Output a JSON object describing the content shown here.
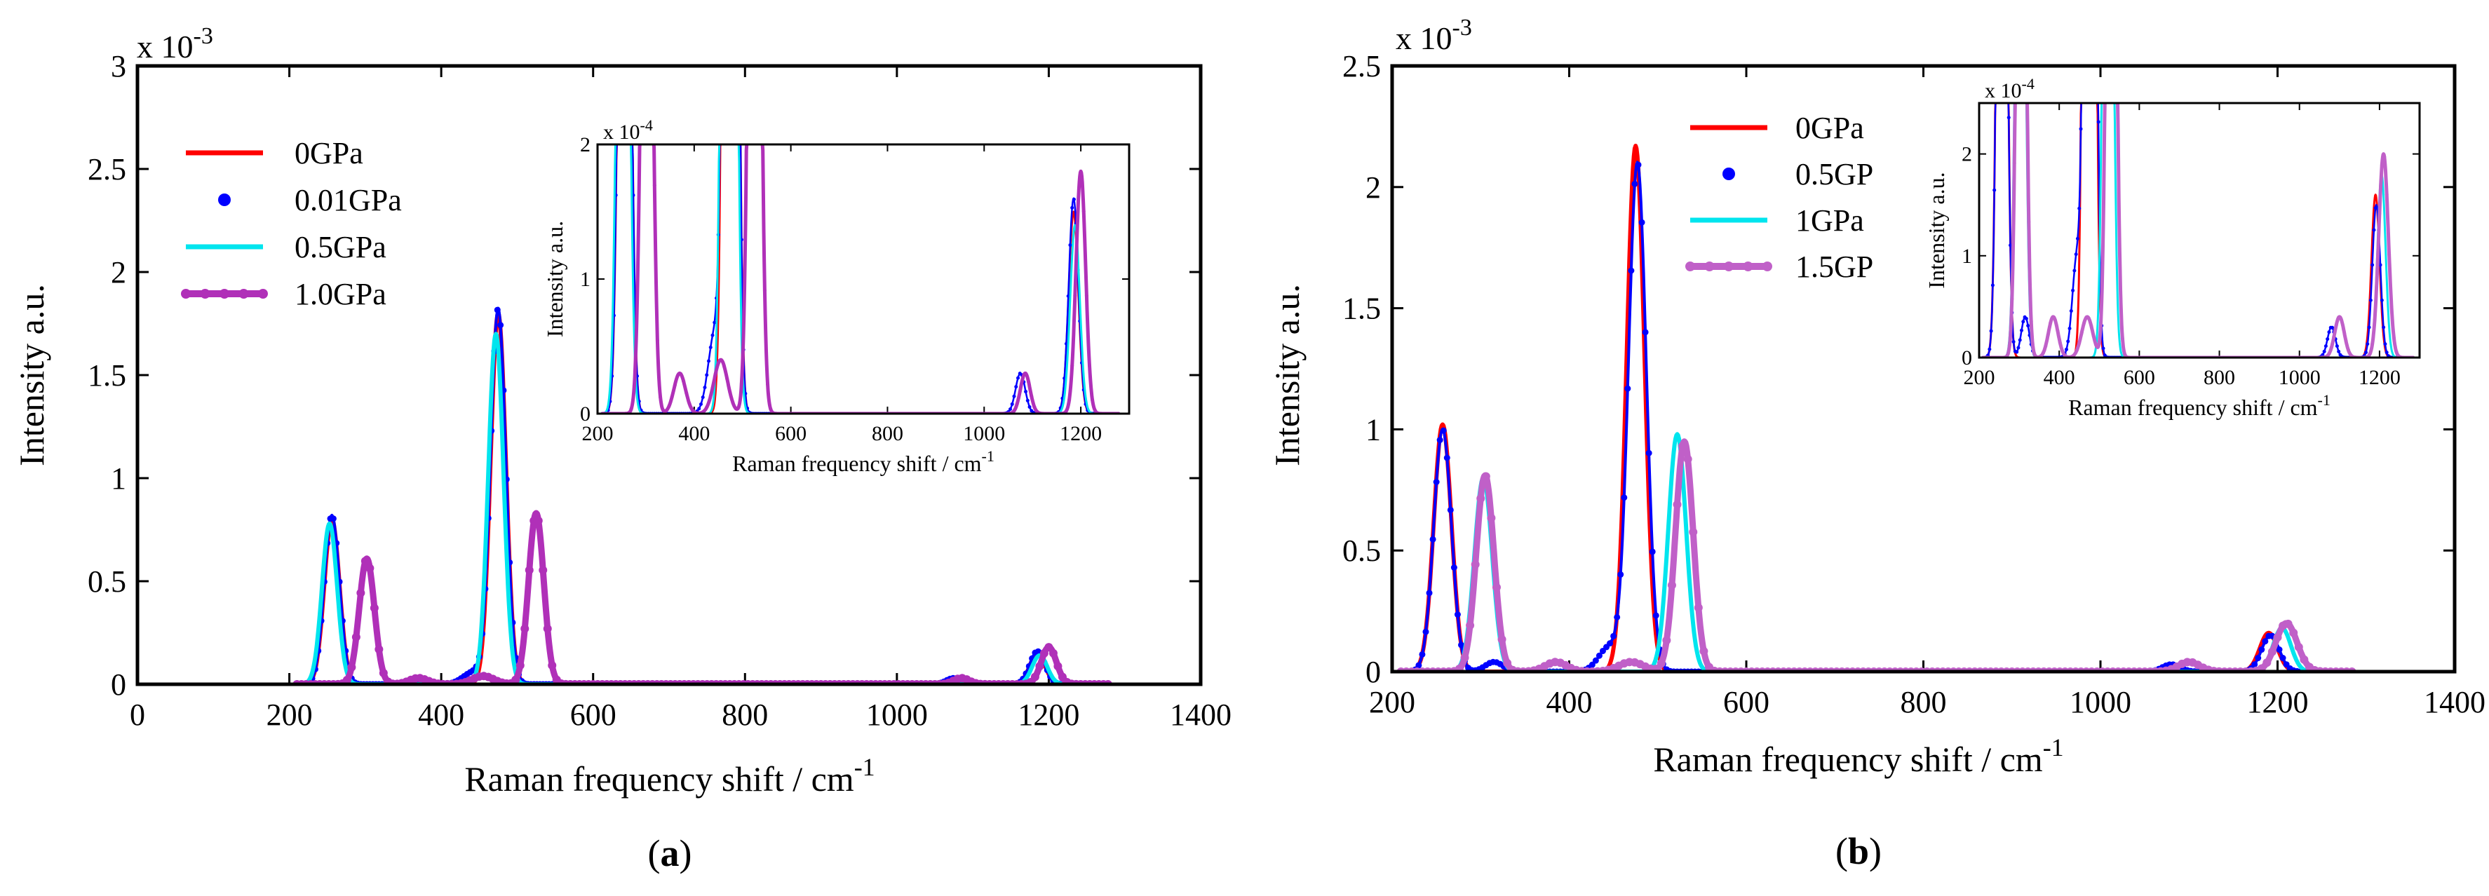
{
  "chart_data": [
    {
      "type": "line",
      "panel_label": "a",
      "xlabel": "Raman frequency shift / cm",
      "xlabel_sup": "-1",
      "ylabel": "Intensity a.u.",
      "y_scale_label": "x 10",
      "y_scale_exp": "-3",
      "xlim": [
        0,
        1400
      ],
      "ylim": [
        0,
        3
      ],
      "xticks": [
        0,
        200,
        400,
        600,
        800,
        1000,
        1200,
        1400
      ],
      "yticks": [
        0,
        0.5,
        1,
        1.5,
        2,
        2.5,
        3
      ],
      "ytick_labels": [
        "0",
        "0.5",
        "1",
        "1.5",
        "2",
        "2.5",
        "3"
      ],
      "legend": "top-left",
      "series": [
        {
          "name": "0GPa",
          "color": "#ff0000",
          "style": "line",
          "range": [
            210,
            1280
          ],
          "peaks": [
            [
              256,
              0.8,
              10
            ],
            [
              475,
              1.8,
              10
            ],
            [
              1185,
              0.15,
              10
            ]
          ]
        },
        {
          "name": "0.01GPa",
          "color": "#0000ff",
          "style": "dots",
          "range": [
            210,
            1280
          ],
          "peaks": [
            [
              256,
              0.82,
              10
            ],
            [
              475,
              1.82,
              10
            ],
            [
              443,
              0.06,
              14
            ],
            [
              1075,
              0.03,
              10
            ],
            [
              1185,
              0.16,
              10
            ]
          ]
        },
        {
          "name": "0.5GPa",
          "color": "#00e5ee",
          "style": "line",
          "range": [
            210,
            1280
          ],
          "peaks": [
            [
              253,
              0.78,
              10
            ],
            [
              472,
              1.7,
              10
            ],
            [
              1188,
              0.14,
              10
            ]
          ]
        },
        {
          "name": "1.0GPa",
          "color": "#b030b8",
          "style": "marker",
          "range": [
            210,
            1280
          ],
          "peaks": [
            [
              302,
              0.61,
              10
            ],
            [
              525,
              0.83,
              10
            ],
            [
              370,
              0.03,
              12
            ],
            [
              455,
              0.04,
              14
            ],
            [
              1085,
              0.03,
              10
            ],
            [
              1200,
              0.18,
              10
            ]
          ]
        }
      ],
      "inset": {
        "xlabel": "Raman frequency shift / cm",
        "xlabel_sup": "-1",
        "ylabel": "Intensity a.u.",
        "y_scale_label": "x 10",
        "y_scale_exp": "-4",
        "xlim": [
          200,
          1300
        ],
        "ylim": [
          0,
          2
        ],
        "xticks": [
          200,
          400,
          600,
          800,
          1000,
          1200
        ],
        "yticks": [
          0,
          1,
          2
        ],
        "ytick_labels": [
          "0",
          "1",
          "2"
        ]
      }
    },
    {
      "type": "line",
      "panel_label": "b",
      "xlabel": "Raman frequency shift / cm",
      "xlabel_sup": "-1",
      "ylabel": "Intensity a.u.",
      "y_scale_label": "x 10",
      "y_scale_exp": "-3",
      "xlim": [
        200,
        1400
      ],
      "ylim": [
        0,
        2.5
      ],
      "xticks": [
        200,
        400,
        600,
        800,
        1000,
        1200,
        1400
      ],
      "yticks": [
        0,
        0.5,
        1,
        1.5,
        2,
        2.5
      ],
      "ytick_labels": [
        "0",
        "0.5",
        "1",
        "1.5",
        "2",
        "2.5"
      ],
      "legend": "top-center",
      "series": [
        {
          "name": "0GPa",
          "color": "#ff0000",
          "style": "line",
          "range": [
            210,
            1285
          ],
          "peaks": [
            [
              257,
              1.02,
              10
            ],
            [
              475,
              2.17,
              10
            ],
            [
              1190,
              0.16,
              10
            ]
          ]
        },
        {
          "name": "0.5GP",
          "color": "#0000ff",
          "style": "dots",
          "range": [
            210,
            1285
          ],
          "peaks": [
            [
              257,
              1.0,
              10
            ],
            [
              477,
              2.1,
              10
            ],
            [
              315,
              0.04,
              10
            ],
            [
              445,
              0.1,
              12
            ],
            [
              1080,
              0.03,
              10
            ],
            [
              1192,
              0.15,
              10
            ]
          ]
        },
        {
          "name": "1GPa",
          "color": "#00e5ee",
          "style": "line",
          "range": [
            210,
            1285
          ],
          "peaks": [
            [
              303,
              0.8,
              10
            ],
            [
              522,
              0.98,
              10
            ],
            [
              1205,
              0.18,
              10
            ]
          ]
        },
        {
          "name": "1.5GP",
          "color": "#c060c8",
          "style": "marker",
          "range": [
            210,
            1285
          ],
          "peaks": [
            [
              305,
              0.81,
              10
            ],
            [
              530,
              0.95,
              10
            ],
            [
              385,
              0.04,
              12
            ],
            [
              470,
              0.04,
              14
            ],
            [
              1100,
              0.04,
              12
            ],
            [
              1210,
              0.2,
              12
            ]
          ]
        }
      ],
      "inset": {
        "xlabel": "Raman frequency shift / cm",
        "xlabel_sup": "-1",
        "ylabel": "Intensity a.u.",
        "y_scale_label": "x 10",
        "y_scale_exp": "-4",
        "xlim": [
          200,
          1300
        ],
        "ylim": [
          0,
          2.5
        ],
        "xticks": [
          200,
          400,
          600,
          800,
          1000,
          1200
        ],
        "yticks": [
          0,
          1,
          2
        ],
        "ytick_labels": [
          "0",
          "1",
          "2"
        ]
      }
    }
  ]
}
